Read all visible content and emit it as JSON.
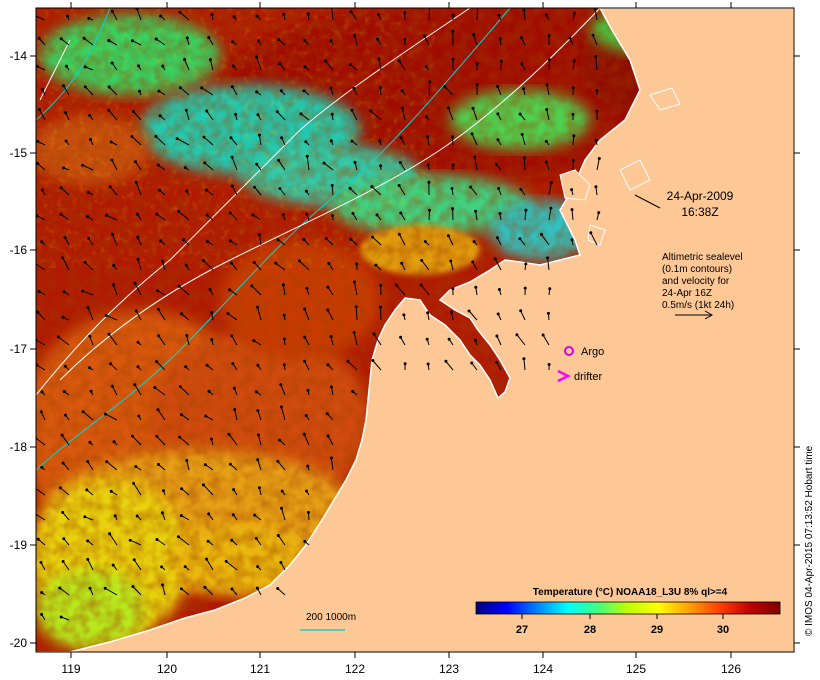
{
  "map": {
    "lat_ticks": [
      "-14",
      "-15",
      "-16",
      "-17",
      "-18",
      "-19",
      "-20"
    ],
    "lon_ticks": [
      "119",
      "120",
      "121",
      "122",
      "123",
      "124",
      "125",
      "126"
    ],
    "date_label": "24-Apr-2009",
    "time_label": "16:38Z",
    "altimetry_note": [
      "Altimetric sealevel",
      "(0.1m contours)",
      "and velocity for",
      "24-Apr 16Z",
      "0.5m/s (1kt 24h)"
    ],
    "argo_label": "Argo",
    "drifter_label": "drifter",
    "bathy_label": "200  1000m",
    "credit": "© IMOS 04-Apr-2015 07:13:52 Hobart time",
    "colorbar": {
      "title": "Temperature (°C) NOAA18_L3U 8% ql>=4",
      "ticks": [
        "27",
        "28",
        "29",
        "30"
      ],
      "colors": [
        "#000080",
        "#0000ff",
        "#0080ff",
        "#00ffff",
        "#40ff80",
        "#c0ff00",
        "#ffff00",
        "#ffa000",
        "#ff4000",
        "#c00000",
        "#800000"
      ]
    },
    "colors": {
      "land": "#fdc796",
      "warm": "#a81400",
      "coast": "#ffffff",
      "argo": "#e000e0",
      "drifter": "#ff00ff",
      "contour": "#00d8d8"
    }
  }
}
